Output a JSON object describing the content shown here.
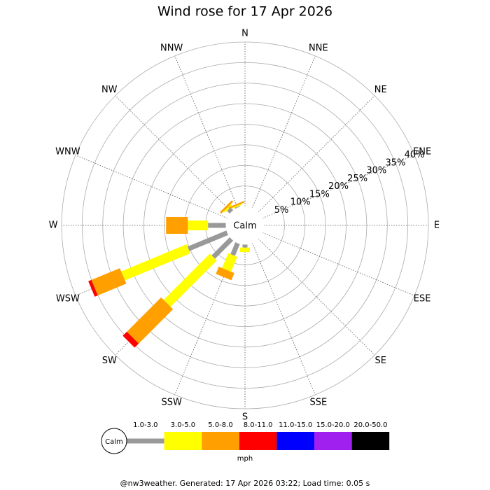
{
  "chart_data": {
    "type": "wind_rose",
    "title": "Wind rose for 17 Apr 2026",
    "categories": [
      "N",
      "NNE",
      "NE",
      "ENE",
      "E",
      "ESE",
      "SE",
      "SSE",
      "S",
      "SSW",
      "SW",
      "WSW",
      "W",
      "WNW",
      "NW",
      "NNW"
    ],
    "series": [
      {
        "name": "1.0-3.0",
        "color": "#999999",
        "values": [
          0,
          0,
          0,
          0,
          0,
          0,
          0,
          0,
          0.8,
          3.2,
          6.3,
          10.3,
          4.4,
          0,
          1.0,
          0.3
        ]
      },
      {
        "name": "3.0-5.0",
        "color": "#ffff00",
        "values": [
          0,
          0,
          0,
          0,
          0,
          0,
          0,
          0,
          1.1,
          3.9,
          15.9,
          17.2,
          4.9,
          0,
          0.5,
          0.3
        ]
      },
      {
        "name": "5.0-8.0",
        "color": "#ffa000",
        "values": [
          0,
          0,
          0,
          0,
          0,
          0,
          0,
          0,
          0,
          1.9,
          11.8,
          7.5,
          5.3,
          0,
          0.5,
          0.4
        ]
      },
      {
        "name": "8.0-11.0",
        "color": "#ff0000",
        "values": [
          0,
          0,
          0,
          0,
          0,
          0,
          0,
          0,
          0,
          0,
          1.4,
          0.8,
          0,
          0,
          0,
          0
        ]
      },
      {
        "name": "11.0-15.0",
        "color": "#0000ff",
        "values": [
          0,
          0,
          0,
          0,
          0,
          0,
          0,
          0,
          0,
          0,
          0,
          0,
          0,
          0,
          0,
          0
        ]
      },
      {
        "name": "15.0-20.0",
        "color": "#a020f0",
        "values": [
          0,
          0,
          0,
          0,
          0,
          0,
          0,
          0,
          0,
          0,
          0,
          0,
          0,
          0,
          0,
          0
        ]
      },
      {
        "name": "20.0-50.0",
        "color": "#000000",
        "values": [
          0,
          0,
          0,
          0,
          0,
          0,
          0,
          0,
          0,
          0,
          0,
          0,
          0,
          0,
          0,
          0
        ]
      }
    ],
    "rlim": [
      0,
      40
    ],
    "rticks": [
      {
        "value": 5,
        "label": "5%"
      },
      {
        "value": 10,
        "label": "10%"
      },
      {
        "value": 15,
        "label": "15%"
      },
      {
        "value": 20,
        "label": "20%"
      },
      {
        "value": 25,
        "label": "25%"
      },
      {
        "value": 30,
        "label": "30%"
      },
      {
        "value": 35,
        "label": "35%"
      },
      {
        "value": 40,
        "label": "40%"
      }
    ],
    "center_label": "Calm",
    "legend_unit": "mph"
  },
  "footer": "@nw3weather. Generated: 17 Apr 2026 03:22; Load time: 0.05 s"
}
